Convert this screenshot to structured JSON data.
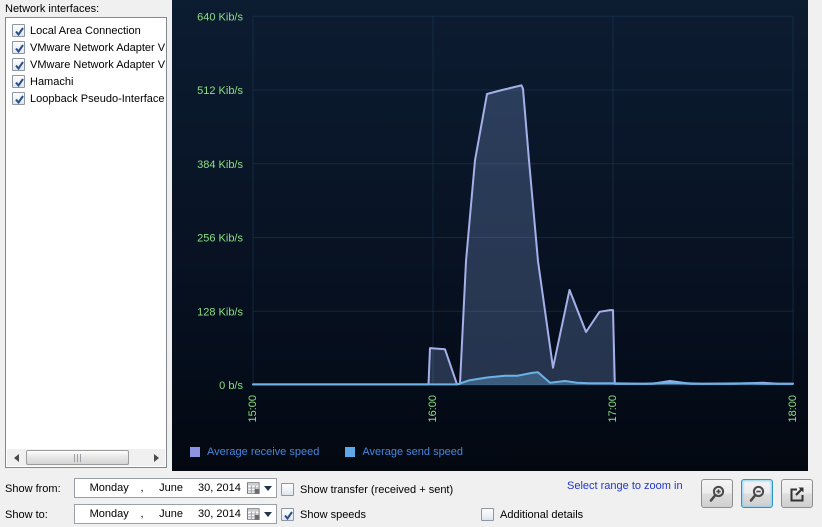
{
  "sidebar": {
    "label": "Network interfaces:",
    "interfaces": [
      {
        "label": "Local Area Connection",
        "checked": true
      },
      {
        "label": "VMware Network Adapter VM",
        "checked": true
      },
      {
        "label": "VMware Network Adapter VM",
        "checked": true
      },
      {
        "label": "Hamachi",
        "checked": true
      },
      {
        "label": "Loopback Pseudo-Interface",
        "checked": true
      }
    ]
  },
  "chart_data": {
    "type": "area",
    "x_unit": "time of day",
    "y_unit": "Kib/s",
    "ylim": [
      0,
      640
    ],
    "xlim_minutes": [
      0,
      180
    ],
    "grid": true,
    "legend_position": "bottom-left",
    "y_ticks": [
      {
        "v": 640,
        "label": "640 Kib/s"
      },
      {
        "v": 512,
        "label": "512 Kib/s"
      },
      {
        "v": 384,
        "label": "384 Kib/s"
      },
      {
        "v": 256,
        "label": "256 Kib/s"
      },
      {
        "v": 128,
        "label": "128 Kib/s"
      },
      {
        "v": 0,
        "label": "0 b/s"
      }
    ],
    "x_ticks": [
      {
        "t": 0,
        "label": "15:00"
      },
      {
        "t": 60,
        "label": "16:00"
      },
      {
        "t": 120,
        "label": "17:00"
      },
      {
        "t": 180,
        "label": "18:00"
      }
    ],
    "series": [
      {
        "name": "Average receive speed",
        "stroke": "#a6b0e8",
        "fill": "rgba(140,170,230,0.25)",
        "points": [
          [
            0,
            1
          ],
          [
            30,
            1
          ],
          [
            58.5,
            1
          ],
          [
            59,
            64
          ],
          [
            64,
            62
          ],
          [
            68,
            1
          ],
          [
            69,
            2
          ],
          [
            71,
            215
          ],
          [
            74,
            390
          ],
          [
            78,
            505
          ],
          [
            83,
            512
          ],
          [
            89.5,
            520
          ],
          [
            90,
            514
          ],
          [
            92,
            390
          ],
          [
            95,
            215
          ],
          [
            100,
            30
          ],
          [
            105.5,
            165
          ],
          [
            111,
            92
          ],
          [
            115.5,
            127
          ],
          [
            119,
            130
          ],
          [
            120,
            130
          ],
          [
            120.6,
            2
          ],
          [
            133,
            2
          ],
          [
            139,
            7
          ],
          [
            146,
            2
          ],
          [
            160,
            2
          ],
          [
            170,
            4
          ],
          [
            175,
            2
          ],
          [
            180,
            2
          ]
        ]
      },
      {
        "name": "Average send speed",
        "stroke": "#6cb2e6",
        "fill": "rgba(108,178,230,0.32)",
        "points": [
          [
            0,
            1
          ],
          [
            58,
            1
          ],
          [
            68,
            1
          ],
          [
            72,
            8
          ],
          [
            78,
            13
          ],
          [
            84,
            16
          ],
          [
            88,
            16
          ],
          [
            93,
            21
          ],
          [
            95,
            22
          ],
          [
            99,
            4
          ],
          [
            104,
            7
          ],
          [
            108,
            4
          ],
          [
            112,
            3
          ],
          [
            120,
            3
          ],
          [
            130,
            2
          ],
          [
            139,
            4
          ],
          [
            150,
            2
          ],
          [
            165,
            3
          ],
          [
            172,
            2
          ],
          [
            180,
            2
          ]
        ]
      }
    ],
    "legend": [
      {
        "label": "Average receive speed",
        "color": "#8c93e0"
      },
      {
        "label": "Average send speed",
        "color": "#5fa8e8"
      }
    ]
  },
  "controls": {
    "show_from_label": "Show from:",
    "show_to_label": "Show to:",
    "date_from": {
      "weekday": "Monday",
      "sep": ",",
      "month": "June",
      "day_year": "30, 2014"
    },
    "date_to": {
      "weekday": "Monday",
      "sep": ",",
      "month": "June",
      "day_year": "30, 2014"
    },
    "show_transfer": {
      "label": "Show transfer (received + sent)",
      "checked": false
    },
    "show_speeds": {
      "label": "Show speeds",
      "checked": true
    },
    "additional_details": {
      "label": "Additional details",
      "checked": false
    },
    "zoom_hint": "Select range to zoom in",
    "icons": {
      "zoom_in": "magnifier-plus",
      "zoom_out": "magnifier-minus",
      "export": "share-arrow"
    }
  },
  "colors": {
    "window_bg": "#f0f0f0",
    "chart_bg_top": "#0c1c31",
    "chart_bg_bottom": "#030810",
    "gridline": "#1a3a55",
    "axis_text": "#8ede84",
    "legend_text": "#4687dd",
    "hint_text": "#1f35cf"
  }
}
